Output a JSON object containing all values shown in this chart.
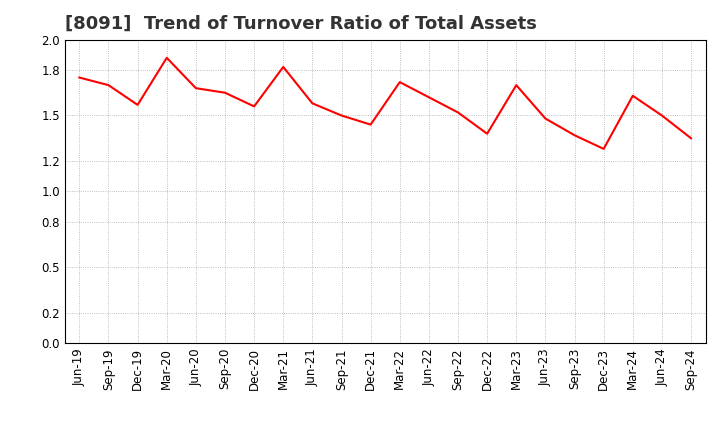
{
  "title": "[8091]  Trend of Turnover Ratio of Total Assets",
  "labels": [
    "Jun-19",
    "Sep-19",
    "Dec-19",
    "Mar-20",
    "Jun-20",
    "Sep-20",
    "Dec-20",
    "Mar-21",
    "Jun-21",
    "Sep-21",
    "Dec-21",
    "Mar-22",
    "Jun-22",
    "Sep-22",
    "Dec-22",
    "Mar-23",
    "Jun-23",
    "Sep-23",
    "Dec-23",
    "Mar-24",
    "Jun-24",
    "Sep-24"
  ],
  "values": [
    1.75,
    1.7,
    1.57,
    1.88,
    1.68,
    1.65,
    1.56,
    1.82,
    1.58,
    1.5,
    1.44,
    1.72,
    1.62,
    1.52,
    1.38,
    1.7,
    1.48,
    1.37,
    1.28,
    1.63,
    1.5,
    1.35
  ],
  "line_color": "#ff0000",
  "line_width": 1.5,
  "ylim": [
    0.0,
    2.0
  ],
  "yticks": [
    0.0,
    0.2,
    0.5,
    0.8,
    1.0,
    1.2,
    1.5,
    1.8,
    2.0
  ],
  "background_color": "#ffffff",
  "grid_color": "#aaaaaa",
  "title_fontsize": 13,
  "tick_fontsize": 8.5
}
